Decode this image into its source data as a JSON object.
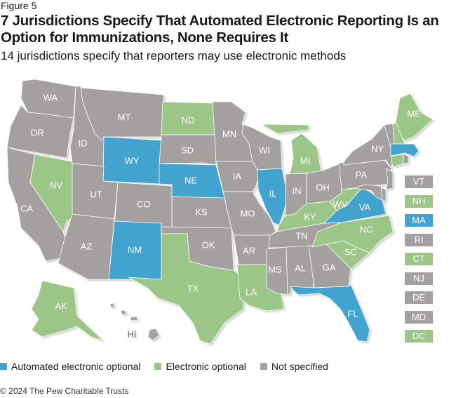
{
  "figure_label": "Figure 5",
  "title": "7 Jurisdictions Specify That Automated Electronic Reporting Is an Option for Immunizations, None Requires It",
  "subtitle": "14 jurisdictions specify that reporters may use electronic methods",
  "colors": {
    "automated": "#42a3cf",
    "electronic": "#9bc688",
    "not_specified": "#a4a09f"
  },
  "legend": [
    {
      "key": "automated",
      "label": "Automated electronic optional"
    },
    {
      "key": "electronic",
      "label": "Electronic optional"
    },
    {
      "key": "not_specified",
      "label": "Not specified"
    }
  ],
  "states": [
    {
      "code": "WA",
      "status": "not_specified"
    },
    {
      "code": "OR",
      "status": "not_specified"
    },
    {
      "code": "CA",
      "status": "not_specified"
    },
    {
      "code": "NV",
      "status": "electronic"
    },
    {
      "code": "ID",
      "status": "not_specified"
    },
    {
      "code": "MT",
      "status": "not_specified"
    },
    {
      "code": "WY",
      "status": "automated"
    },
    {
      "code": "UT",
      "status": "not_specified"
    },
    {
      "code": "CO",
      "status": "not_specified"
    },
    {
      "code": "AZ",
      "status": "not_specified"
    },
    {
      "code": "NM",
      "status": "automated"
    },
    {
      "code": "ND",
      "status": "electronic"
    },
    {
      "code": "SD",
      "status": "not_specified"
    },
    {
      "code": "NE",
      "status": "automated"
    },
    {
      "code": "KS",
      "status": "not_specified"
    },
    {
      "code": "OK",
      "status": "not_specified"
    },
    {
      "code": "TX",
      "status": "electronic"
    },
    {
      "code": "MN",
      "status": "not_specified"
    },
    {
      "code": "IA",
      "status": "not_specified"
    },
    {
      "code": "MO",
      "status": "not_specified"
    },
    {
      "code": "AR",
      "status": "not_specified"
    },
    {
      "code": "LA",
      "status": "electronic"
    },
    {
      "code": "WI",
      "status": "not_specified"
    },
    {
      "code": "IL",
      "status": "automated"
    },
    {
      "code": "MI",
      "status": "electronic"
    },
    {
      "code": "IN",
      "status": "not_specified"
    },
    {
      "code": "OH",
      "status": "not_specified"
    },
    {
      "code": "KY",
      "status": "electronic"
    },
    {
      "code": "TN",
      "status": "not_specified"
    },
    {
      "code": "MS",
      "status": "not_specified"
    },
    {
      "code": "AL",
      "status": "not_specified"
    },
    {
      "code": "GA",
      "status": "not_specified"
    },
    {
      "code": "FL",
      "status": "automated"
    },
    {
      "code": "SC",
      "status": "electronic"
    },
    {
      "code": "NC",
      "status": "electronic"
    },
    {
      "code": "VA",
      "status": "automated"
    },
    {
      "code": "WV",
      "status": "electronic"
    },
    {
      "code": "PA",
      "status": "not_specified"
    },
    {
      "code": "NY",
      "status": "not_specified"
    },
    {
      "code": "ME",
      "status": "electronic"
    },
    {
      "code": "AK",
      "status": "electronic"
    },
    {
      "code": "HI",
      "status": "not_specified"
    }
  ],
  "small_states": [
    {
      "code": "VT",
      "status": "not_specified"
    },
    {
      "code": "NH",
      "status": "electronic"
    },
    {
      "code": "MA",
      "status": "automated"
    },
    {
      "code": "RI",
      "status": "not_specified"
    },
    {
      "code": "CT",
      "status": "electronic"
    },
    {
      "code": "NJ",
      "status": "not_specified"
    },
    {
      "code": "DE",
      "status": "not_specified"
    },
    {
      "code": "MD",
      "status": "not_specified"
    },
    {
      "code": "DC",
      "status": "electronic"
    }
  ],
  "copyright": "© 2024 The Pew Charitable Trusts"
}
